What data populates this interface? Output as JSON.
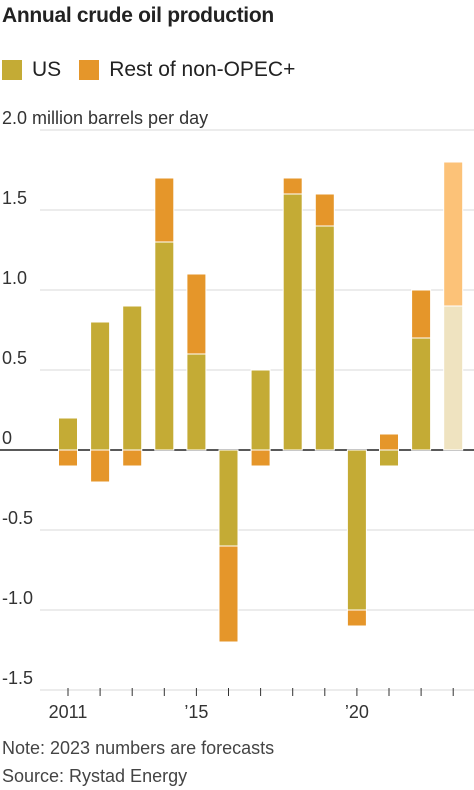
{
  "title": "Annual crude oil production",
  "legend": [
    {
      "label": "US",
      "color": "#c4ab35"
    },
    {
      "label": "Rest of non-OPEC+",
      "color": "#e5962a"
    }
  ],
  "y_unit_label": "2.0 million barrels per day",
  "note": "Note: 2023 numbers are forecasts",
  "source": "Source: Rystad Energy",
  "chart_data": {
    "type": "bar",
    "stacked": true,
    "categories": [
      "2011",
      "2012",
      "2013",
      "2014",
      "2015",
      "2016",
      "2017",
      "2018",
      "2019",
      "2020",
      "2021",
      "2022",
      "2023"
    ],
    "series": [
      {
        "name": "US",
        "values": [
          0.2,
          0.8,
          0.9,
          1.3,
          0.6,
          -0.6,
          0.5,
          1.6,
          1.4,
          -1.0,
          -0.1,
          0.7,
          0.9
        ],
        "color": "#c4ab35",
        "forecast_color": "#efe3c0"
      },
      {
        "name": "Rest of non-OPEC+",
        "values": [
          -0.1,
          -0.2,
          -0.1,
          0.4,
          0.5,
          -0.6,
          -0.1,
          0.1,
          0.2,
          -0.1,
          0.1,
          0.3,
          0.9
        ],
        "color": "#e5962a",
        "forecast_color": "#fcc278"
      }
    ],
    "forecast_categories": [
      "2023"
    ],
    "y_ticks": [
      {
        "value": 2.0,
        "label": "2.0 million barrels per day"
      },
      {
        "value": 1.5,
        "label": "1.5"
      },
      {
        "value": 1.0,
        "label": "1.0"
      },
      {
        "value": 0.5,
        "label": "0.5"
      },
      {
        "value": 0,
        "label": "0"
      },
      {
        "value": -0.5,
        "label": "-0.5"
      },
      {
        "value": -1.0,
        "label": "-1.0"
      },
      {
        "value": -1.5,
        "label": "-1.5"
      }
    ],
    "x_tick_labels": [
      {
        "category": "2011",
        "label": "2011"
      },
      {
        "category": "2015",
        "label": "’15"
      },
      {
        "category": "2020",
        "label": "’20"
      }
    ],
    "ylim": [
      -1.5,
      2.0
    ],
    "grid": true
  }
}
